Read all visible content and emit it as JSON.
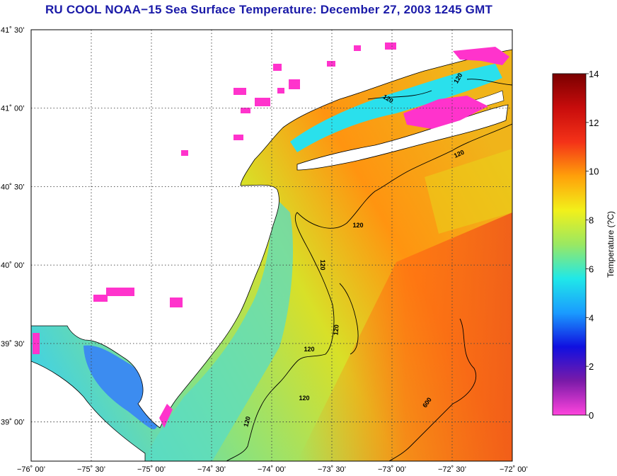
{
  "title": "RU COOL  NOAA−15  Sea Surface Temperature:  December 27, 2003 1245 GMT",
  "map": {
    "lat_labels": [
      "41˚ 30’",
      "41˚ 00’",
      "40˚ 30’",
      "40˚ 00’",
      "39˚ 30’",
      "39˚ 00’"
    ],
    "lon_labels": [
      "−76˚ 00’",
      "−75˚ 30’",
      "−75˚ 00’",
      "−74˚ 30’",
      "−74˚ 00’",
      "−73˚ 30’",
      "−73˚ 00’",
      "−72˚ 30’",
      "−72˚ 00’"
    ],
    "lat_values": [
      41.5,
      41.0,
      40.5,
      40.0,
      39.5,
      39.0
    ],
    "lon_values": [
      -76.0,
      -75.5,
      -75.0,
      -74.5,
      -74.0,
      -73.5,
      -73.0,
      -72.5,
      -72.0
    ],
    "bounds": {
      "lon_min": -76.0,
      "lon_max": -72.0,
      "lat_min": 38.75,
      "lat_max": 41.5
    },
    "grid": true,
    "contours": [
      {
        "label": "120"
      },
      {
        "label": "120"
      },
      {
        "label": "120"
      },
      {
        "label": "120"
      },
      {
        "label": "120"
      },
      {
        "label": "120"
      },
      {
        "label": "120"
      },
      {
        "label": "120"
      },
      {
        "label": "120"
      },
      {
        "label": "600"
      }
    ]
  },
  "colorbar": {
    "title": "Temperature (?C)",
    "min": 0,
    "max": 14,
    "ticks": [
      "0",
      "2",
      "4",
      "6",
      "8",
      "10",
      "12",
      "14"
    ],
    "stops": [
      "#ff44dd",
      "#7a1aa8",
      "#1010e0",
      "#1a9cff",
      "#20e8e8",
      "#9ae862",
      "#f2f01a",
      "#ffa00a",
      "#f43218",
      "#c80c0c",
      "#7a0000"
    ]
  },
  "colors": {
    "land": "#ffffff",
    "cloud": "#ff33cc",
    "title": "#1a1aa8"
  }
}
